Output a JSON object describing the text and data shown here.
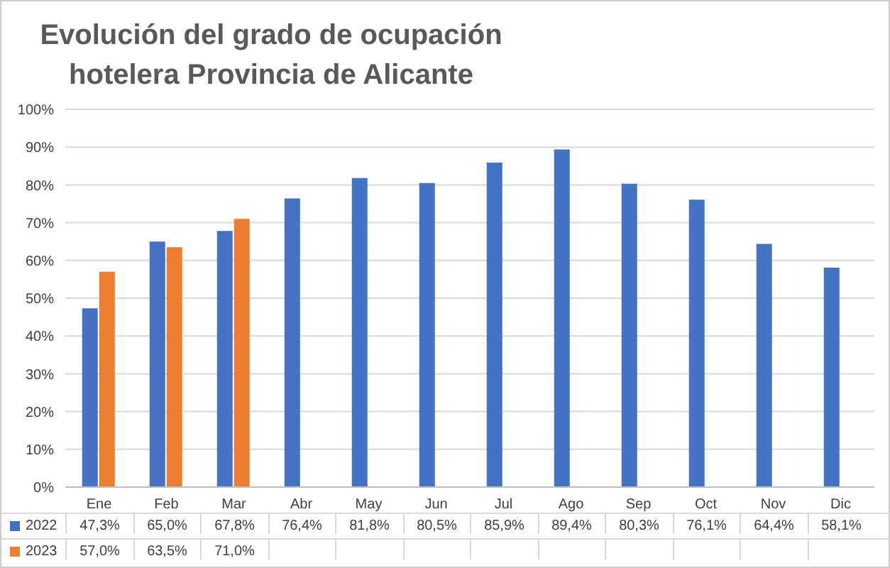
{
  "chart_data": {
    "type": "bar",
    "title": "Evolución del grado de ocupación hotelera Provincia de Alicante",
    "categories": [
      "Ene",
      "Feb",
      "Mar",
      "Abr",
      "May",
      "Jun",
      "Jul",
      "Ago",
      "Sep",
      "Oct",
      "Nov",
      "Dic"
    ],
    "series": [
      {
        "name": "2022",
        "color": "#4472c4",
        "values": [
          47.3,
          65.0,
          67.8,
          76.4,
          81.8,
          80.5,
          85.9,
          89.4,
          80.3,
          76.1,
          64.4,
          58.1
        ],
        "value_labels": [
          "47,3%",
          "65,0%",
          "67,8%",
          "76,4%",
          "81,8%",
          "80,5%",
          "85,9%",
          "89,4%",
          "80,3%",
          "76,1%",
          "64,4%",
          "58,1%"
        ]
      },
      {
        "name": "2023",
        "color": "#ed7d31",
        "values": [
          57.0,
          63.5,
          71.0,
          null,
          null,
          null,
          null,
          null,
          null,
          null,
          null,
          null
        ],
        "value_labels": [
          "57,0%",
          "63,5%",
          "71,0%",
          null,
          null,
          null,
          null,
          null,
          null,
          null,
          null,
          null
        ]
      }
    ],
    "ylim": [
      0,
      100
    ],
    "yticks": [
      {
        "value": 0,
        "label": "0%"
      },
      {
        "value": 10,
        "label": "10%"
      },
      {
        "value": 20,
        "label": "20%"
      },
      {
        "value": 30,
        "label": "30%"
      },
      {
        "value": 40,
        "label": "40%"
      },
      {
        "value": 50,
        "label": "50%"
      },
      {
        "value": 60,
        "label": "60%"
      },
      {
        "value": 70,
        "label": "70%"
      },
      {
        "value": 80,
        "label": "80%"
      },
      {
        "value": 90,
        "label": "90%"
      },
      {
        "value": 100,
        "label": "100%"
      }
    ],
    "grid": "y",
    "legend": "bottom"
  }
}
